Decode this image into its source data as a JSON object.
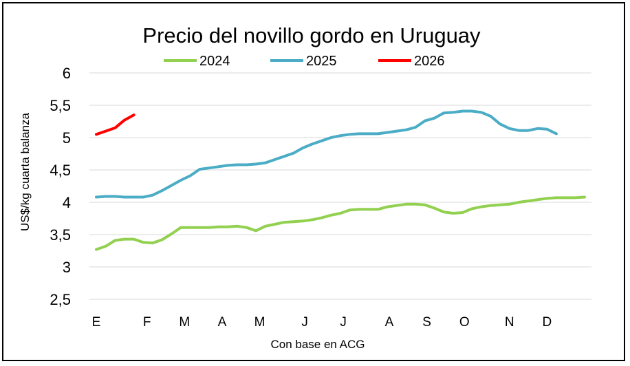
{
  "chart_data": {
    "type": "line",
    "title": "Precio del novillo gordo en Uruguay",
    "xlabel": "Con base en ACG",
    "ylabel": "US$/kg cuarta balanza",
    "ylim": [
      2.5,
      6
    ],
    "yticks": [
      "6",
      "5,5",
      "5",
      "4,5",
      "4",
      "3,5",
      "3",
      "2,5"
    ],
    "ytick_values": [
      6,
      5.5,
      5,
      4.5,
      4,
      3.5,
      3,
      2.5
    ],
    "xlim": [
      1,
      53
    ],
    "month_labels": [
      "E",
      "F",
      "M",
      "A",
      "M",
      "J",
      "J",
      "A",
      "S",
      "O",
      "N",
      "D"
    ],
    "month_positions": [
      1,
      6.4,
      10.4,
      14.4,
      18.4,
      23.2,
      27.3,
      32.2,
      36.2,
      40.2,
      45,
      49
    ],
    "legend_position": "top",
    "series": [
      {
        "name": "2024",
        "color": "#92d050",
        "x": [
          1,
          2,
          3,
          4,
          5,
          6,
          7,
          8,
          9,
          10,
          11,
          12,
          13,
          14,
          15,
          16,
          17,
          18,
          19,
          20,
          21,
          22,
          23,
          24,
          25,
          26,
          27,
          28,
          29,
          30,
          31,
          32,
          33,
          34,
          35,
          36,
          37,
          38,
          39,
          40,
          41,
          42,
          43,
          44,
          45,
          46,
          47,
          48,
          49,
          50,
          51,
          52,
          53
        ],
        "values": [
          3.27,
          3.32,
          3.41,
          3.43,
          3.43,
          3.38,
          3.37,
          3.42,
          3.51,
          3.61,
          3.61,
          3.61,
          3.61,
          3.62,
          3.62,
          3.63,
          3.61,
          3.56,
          3.63,
          3.66,
          3.69,
          3.7,
          3.71,
          3.73,
          3.76,
          3.8,
          3.83,
          3.88,
          3.89,
          3.89,
          3.89,
          3.93,
          3.95,
          3.97,
          3.97,
          3.96,
          3.91,
          3.85,
          3.83,
          3.84,
          3.9,
          3.93,
          3.95,
          3.96,
          3.97,
          4.0,
          4.02,
          4.04,
          4.06,
          4.07,
          4.07,
          4.07,
          4.08
        ]
      },
      {
        "name": "2025",
        "color": "#4bacc6",
        "x": [
          1,
          2,
          3,
          4,
          5,
          6,
          7,
          8,
          9,
          10,
          11,
          12,
          13,
          14,
          15,
          16,
          17,
          18,
          19,
          20,
          21,
          22,
          23,
          24,
          25,
          26,
          27,
          28,
          29,
          30,
          31,
          32,
          33,
          34,
          35,
          36,
          37,
          38,
          39,
          40,
          41,
          42,
          43,
          44,
          45,
          46,
          47,
          48,
          49,
          50
        ],
        "values": [
          4.08,
          4.09,
          4.09,
          4.08,
          4.08,
          4.08,
          4.11,
          4.18,
          4.26,
          4.34,
          4.41,
          4.51,
          4.53,
          4.55,
          4.57,
          4.58,
          4.58,
          4.59,
          4.61,
          4.66,
          4.71,
          4.76,
          4.84,
          4.9,
          4.95,
          5.0,
          5.03,
          5.05,
          5.06,
          5.06,
          5.06,
          5.08,
          5.1,
          5.12,
          5.16,
          5.26,
          5.3,
          5.38,
          5.39,
          5.41,
          5.41,
          5.39,
          5.33,
          5.21,
          5.14,
          5.11,
          5.11,
          5.14,
          5.13,
          5.06
        ]
      },
      {
        "name": "2026",
        "color": "#ff0000",
        "x": [
          1,
          2,
          3,
          4,
          5
        ],
        "values": [
          5.05,
          5.1,
          5.15,
          5.27,
          5.35
        ]
      }
    ]
  }
}
